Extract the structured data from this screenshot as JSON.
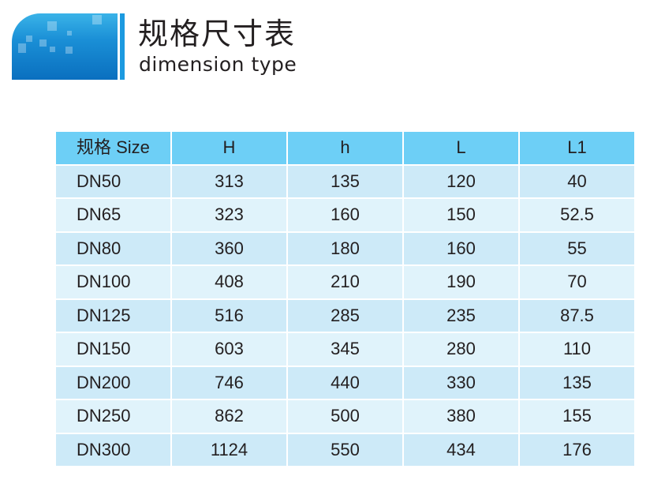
{
  "heading": {
    "title_cn": "规格尺寸表",
    "title_en": "dimension type"
  },
  "table": {
    "headers": [
      "规格 Size",
      "H",
      "h",
      "L",
      "L1"
    ],
    "rows": [
      [
        "DN50",
        "313",
        "135",
        "120",
        "40"
      ],
      [
        "DN65",
        "323",
        "160",
        "150",
        "52.5"
      ],
      [
        "DN80",
        "360",
        "180",
        "160",
        "55"
      ],
      [
        "DN100",
        "408",
        "210",
        "190",
        "70"
      ],
      [
        "DN125",
        "516",
        "285",
        "235",
        "87.5"
      ],
      [
        "DN150",
        "603",
        "345",
        "280",
        "110"
      ],
      [
        "DN200",
        "746",
        "440",
        "330",
        "135"
      ],
      [
        "DN250",
        "862",
        "500",
        "380",
        "155"
      ],
      [
        "DN300",
        "1124",
        "550",
        "434",
        "176"
      ]
    ]
  },
  "colors": {
    "header": "#6dcff6",
    "row_light": "#e0f3fb",
    "row_alt": "#cdeaf8",
    "logo": "#1a8fd6"
  }
}
